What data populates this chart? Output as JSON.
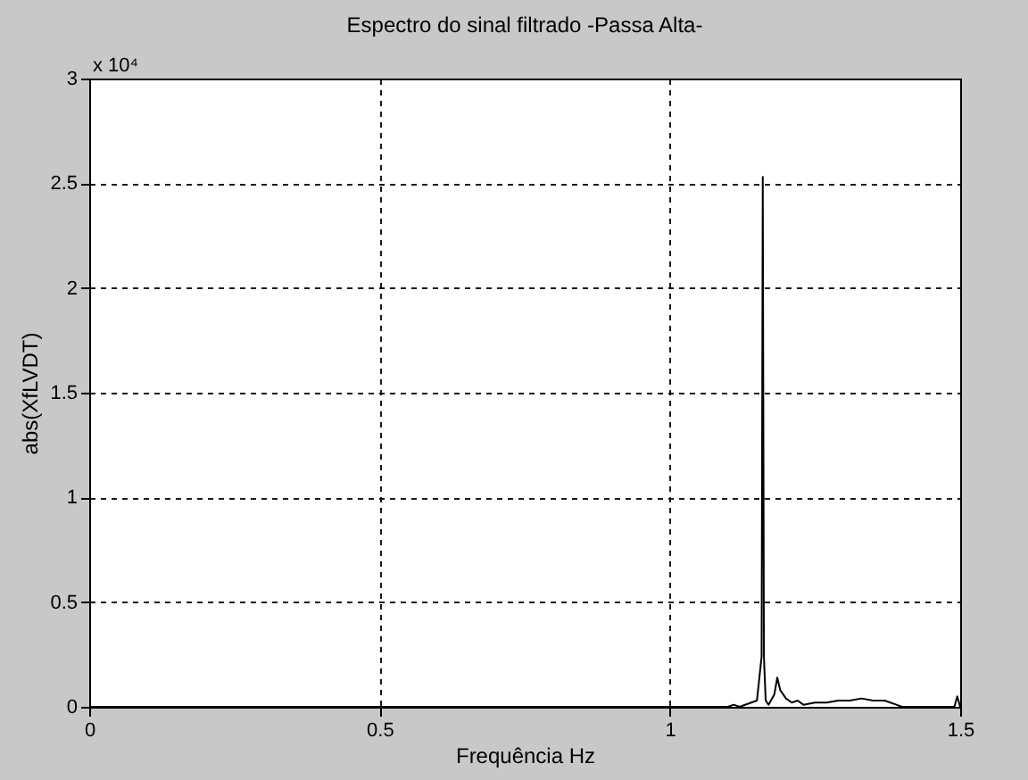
{
  "chart_data": {
    "type": "line",
    "title": "Espectro do sinal filtrado -Passa Alta-",
    "xlabel": "Frequência Hz",
    "ylabel": "abs(XfLVDT)",
    "annotations": [
      "x 10⁴"
    ],
    "x": [
      0,
      0.5,
      1.0,
      1.1,
      1.11,
      1.12,
      1.15,
      1.158,
      1.16,
      1.162,
      1.165,
      1.17,
      1.18,
      1.185,
      1.19,
      1.2,
      1.21,
      1.22,
      1.23,
      1.25,
      1.27,
      1.29,
      1.31,
      1.33,
      1.35,
      1.37,
      1.39,
      1.4,
      1.49,
      1.495,
      1.5
    ],
    "series": [
      {
        "color": "#000000",
        "values": [
          0,
          0,
          0,
          0,
          0.01,
          0,
          0.03,
          0.24,
          2.53,
          0.24,
          0.03,
          0.01,
          0.06,
          0.14,
          0.08,
          0.04,
          0.02,
          0.03,
          0.01,
          0.02,
          0.02,
          0.03,
          0.03,
          0.04,
          0.03,
          0.03,
          0.01,
          0,
          0,
          0.05,
          0
        ]
      }
    ],
    "xlim": [
      0,
      1.5
    ],
    "xticks": [
      0,
      0.5,
      1,
      1.5
    ],
    "ylim": [
      0,
      3
    ],
    "yticks": [
      0,
      0.5,
      1,
      1.5,
      2,
      2.5,
      3
    ],
    "grid": true,
    "marker": "none",
    "line_style": "solid"
  }
}
